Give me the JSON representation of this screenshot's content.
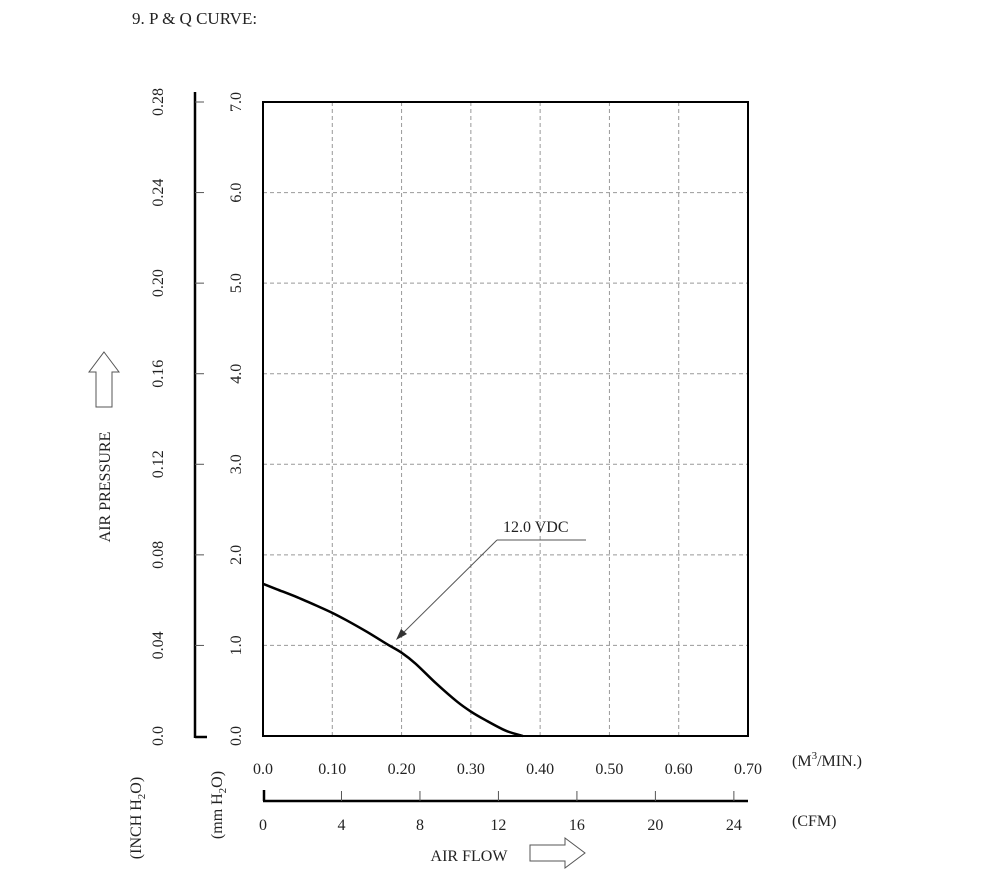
{
  "title": "9. P & Q CURVE:",
  "chart_data": {
    "type": "line",
    "series": [
      {
        "name": "12.0 VDC",
        "x": [
          0.0,
          0.02,
          0.05,
          0.08,
          0.1,
          0.12,
          0.15,
          0.18,
          0.2,
          0.22,
          0.25,
          0.28,
          0.3,
          0.32,
          0.35,
          0.375
        ],
        "y": [
          1.68,
          1.62,
          1.53,
          1.43,
          1.36,
          1.28,
          1.15,
          1.01,
          0.92,
          0.8,
          0.58,
          0.38,
          0.27,
          0.18,
          0.06,
          0.0
        ]
      }
    ],
    "annotation": "12.0 VDC",
    "xlabel": "AIR FLOW",
    "ylabel": "AIR PRESSURE",
    "x_primary": {
      "unit_label": "(M",
      "unit_sup": "3",
      "unit_label_end": "/MIN.)",
      "ticks": [
        "0.0",
        "0.10",
        "0.20",
        "0.30",
        "0.40",
        "0.50",
        "0.60",
        "0.70"
      ],
      "range": [
        0,
        0.7
      ]
    },
    "x_secondary": {
      "unit_label": "(CFM)",
      "ticks": [
        "0",
        "4",
        "8",
        "12",
        "16",
        "20",
        "24"
      ],
      "range": [
        0,
        24.72
      ]
    },
    "y_primary": {
      "unit_label_start": "(mm H",
      "unit_sub": "2",
      "unit_label_end": "O)",
      "ticks": [
        "0.0",
        "1.0",
        "2.0",
        "3.0",
        "4.0",
        "5.0",
        "6.0",
        "7.0"
      ],
      "range": [
        0,
        7
      ]
    },
    "y_secondary": {
      "unit_label_start": "(INCH H",
      "unit_sub": "2",
      "unit_label_end": "O)",
      "ticks": [
        "0.0",
        "0.04",
        "0.08",
        "0.12",
        "0.16",
        "0.20",
        "0.24",
        "0.28"
      ],
      "range": [
        0,
        0.28
      ]
    },
    "grid": true
  }
}
